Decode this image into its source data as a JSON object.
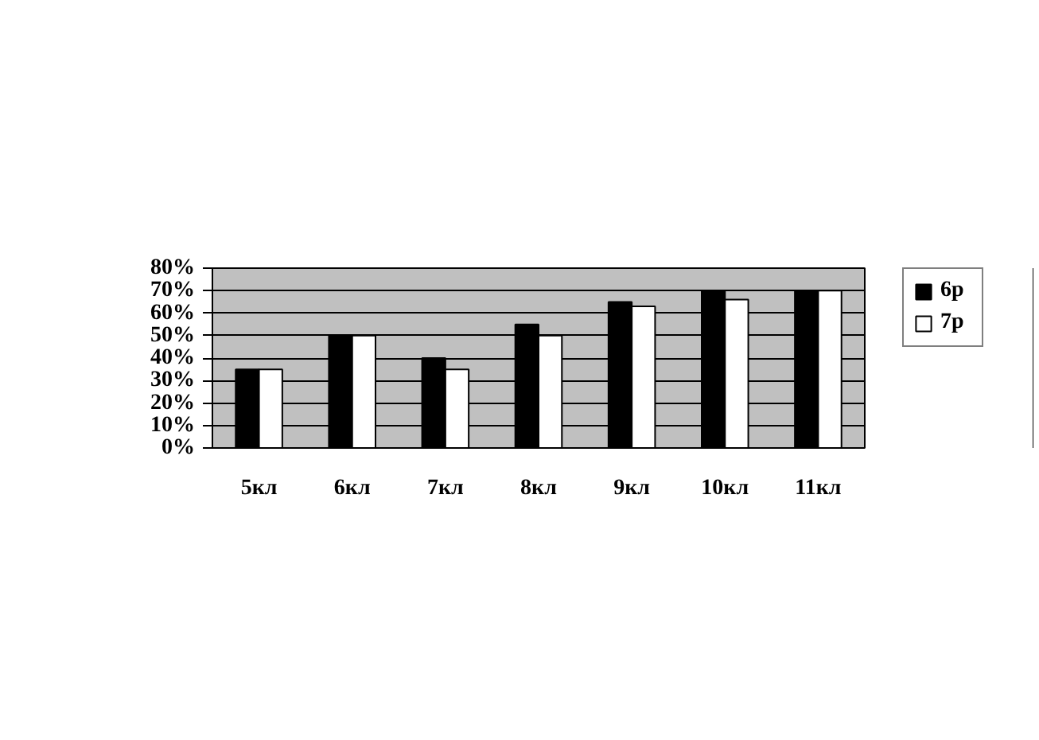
{
  "chart_data": {
    "type": "bar",
    "categories": [
      "5кл",
      "6кл",
      "7кл",
      "8кл",
      "9кл",
      "10кл",
      "11кл"
    ],
    "series": [
      {
        "name": "6р",
        "color": "#000000",
        "values": [
          35,
          50,
          40,
          55,
          65,
          70,
          70
        ]
      },
      {
        "name": "7р",
        "color": "#ffffff",
        "values": [
          35,
          50,
          35,
          50,
          63,
          66,
          70
        ]
      }
    ],
    "ylim": [
      0,
      80
    ],
    "yticks": [
      {
        "value": 0,
        "label": "0%"
      },
      {
        "value": 10,
        "label": "10%"
      },
      {
        "value": 20,
        "label": "20%"
      },
      {
        "value": 30,
        "label": "30%"
      },
      {
        "value": 40,
        "label": "40%"
      },
      {
        "value": 50,
        "label": "50%"
      },
      {
        "value": 60,
        "label": "60%"
      },
      {
        "value": 70,
        "label": "70%"
      },
      {
        "value": 80,
        "label": "80%"
      }
    ],
    "grid": "y",
    "legend": "right"
  }
}
